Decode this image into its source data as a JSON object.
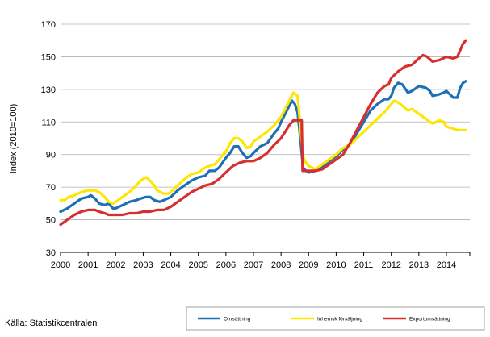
{
  "chart_data": {
    "type": "line",
    "ylabel": "Index (2010=100)",
    "ylim": [
      30,
      170
    ],
    "yticks": [
      30,
      50,
      70,
      90,
      110,
      130,
      150,
      170
    ],
    "xlim": [
      2000,
      2014.85
    ],
    "xticks": [
      2000,
      2001,
      2002,
      2003,
      2004,
      2005,
      2006,
      2007,
      2008,
      2009,
      2010,
      2011,
      2012,
      2013,
      2014
    ],
    "xtick_labels": [
      "2000",
      "2001",
      "2002",
      "2003",
      "2004",
      "2005",
      "2006",
      "2007",
      "2008",
      "2009",
      "2010",
      "2011",
      "2012",
      "2013",
      "2014"
    ],
    "grid": true,
    "legend_position": "bottom-right",
    "source": "Källa: Statistikcentralen",
    "series": [
      {
        "name": "Omsättning",
        "color": "#1f6fb5",
        "points": [
          [
            2000.0,
            55
          ],
          [
            2000.25,
            57
          ],
          [
            2000.5,
            60
          ],
          [
            2000.75,
            63
          ],
          [
            2001.0,
            64
          ],
          [
            2001.1,
            65
          ],
          [
            2001.25,
            63
          ],
          [
            2001.4,
            60
          ],
          [
            2001.6,
            59
          ],
          [
            2001.75,
            60
          ],
          [
            2001.9,
            57
          ],
          [
            2002.0,
            57
          ],
          [
            2002.25,
            59
          ],
          [
            2002.5,
            61
          ],
          [
            2002.75,
            62
          ],
          [
            2002.9,
            63
          ],
          [
            2003.1,
            64
          ],
          [
            2003.25,
            64
          ],
          [
            2003.4,
            62
          ],
          [
            2003.6,
            61
          ],
          [
            2003.75,
            62
          ],
          [
            2004.0,
            64
          ],
          [
            2004.25,
            68
          ],
          [
            2004.5,
            71
          ],
          [
            2004.75,
            74
          ],
          [
            2005.0,
            76
          ],
          [
            2005.25,
            77
          ],
          [
            2005.4,
            80
          ],
          [
            2005.6,
            80
          ],
          [
            2005.75,
            82
          ],
          [
            2006.0,
            88
          ],
          [
            2006.15,
            91
          ],
          [
            2006.3,
            95
          ],
          [
            2006.45,
            95
          ],
          [
            2006.6,
            91
          ],
          [
            2006.75,
            88
          ],
          [
            2006.9,
            89
          ],
          [
            2007.0,
            91
          ],
          [
            2007.25,
            95
          ],
          [
            2007.5,
            97
          ],
          [
            2007.75,
            103
          ],
          [
            2007.9,
            106
          ],
          [
            2008.0,
            110
          ],
          [
            2008.15,
            115
          ],
          [
            2008.3,
            120
          ],
          [
            2008.4,
            123
          ],
          [
            2008.5,
            121
          ],
          [
            2008.6,
            116
          ],
          [
            2008.7,
            100
          ],
          [
            2008.8,
            82
          ],
          [
            2008.9,
            80
          ],
          [
            2009.0,
            79
          ],
          [
            2009.25,
            80
          ],
          [
            2009.5,
            82
          ],
          [
            2009.75,
            86
          ],
          [
            2010.0,
            89
          ],
          [
            2010.25,
            93
          ],
          [
            2010.5,
            96
          ],
          [
            2010.75,
            103
          ],
          [
            2011.0,
            110
          ],
          [
            2011.25,
            117
          ],
          [
            2011.5,
            121
          ],
          [
            2011.75,
            124
          ],
          [
            2011.9,
            124
          ],
          [
            2012.0,
            126
          ],
          [
            2012.1,
            131
          ],
          [
            2012.25,
            134
          ],
          [
            2012.4,
            133
          ],
          [
            2012.6,
            128
          ],
          [
            2012.75,
            129
          ],
          [
            2013.0,
            132
          ],
          [
            2013.25,
            131
          ],
          [
            2013.4,
            129
          ],
          [
            2013.5,
            126
          ],
          [
            2013.75,
            127
          ],
          [
            2013.9,
            128
          ],
          [
            2014.0,
            129
          ],
          [
            2014.25,
            125
          ],
          [
            2014.4,
            125
          ],
          [
            2014.5,
            131
          ],
          [
            2014.6,
            134
          ],
          [
            2014.7,
            135
          ]
        ]
      },
      {
        "name": "Inhemsk försäljning",
        "color": "#ffe600",
        "points": [
          [
            2000.0,
            62
          ],
          [
            2000.15,
            62
          ],
          [
            2000.3,
            64
          ],
          [
            2000.5,
            65
          ],
          [
            2000.75,
            67
          ],
          [
            2001.0,
            68
          ],
          [
            2001.25,
            68
          ],
          [
            2001.4,
            67
          ],
          [
            2001.6,
            64
          ],
          [
            2001.75,
            61
          ],
          [
            2001.9,
            60
          ],
          [
            2002.0,
            61
          ],
          [
            2002.25,
            64
          ],
          [
            2002.5,
            67
          ],
          [
            2002.75,
            71
          ],
          [
            2002.9,
            74
          ],
          [
            2003.1,
            76
          ],
          [
            2003.25,
            74
          ],
          [
            2003.4,
            71
          ],
          [
            2003.5,
            68
          ],
          [
            2003.75,
            66
          ],
          [
            2003.9,
            66
          ],
          [
            2004.0,
            67
          ],
          [
            2004.25,
            71
          ],
          [
            2004.5,
            75
          ],
          [
            2004.75,
            78
          ],
          [
            2005.0,
            79
          ],
          [
            2005.25,
            82
          ],
          [
            2005.4,
            83
          ],
          [
            2005.6,
            84
          ],
          [
            2005.75,
            87
          ],
          [
            2006.0,
            92
          ],
          [
            2006.15,
            97
          ],
          [
            2006.3,
            100
          ],
          [
            2006.45,
            100
          ],
          [
            2006.6,
            98
          ],
          [
            2006.75,
            94
          ],
          [
            2006.9,
            95
          ],
          [
            2007.0,
            98
          ],
          [
            2007.25,
            101
          ],
          [
            2007.5,
            104
          ],
          [
            2007.75,
            108
          ],
          [
            2007.9,
            111
          ],
          [
            2008.0,
            113
          ],
          [
            2008.15,
            118
          ],
          [
            2008.3,
            123
          ],
          [
            2008.45,
            128
          ],
          [
            2008.6,
            126
          ],
          [
            2008.7,
            108
          ],
          [
            2008.8,
            89
          ],
          [
            2008.9,
            85
          ],
          [
            2009.0,
            83
          ],
          [
            2009.25,
            81
          ],
          [
            2009.5,
            84
          ],
          [
            2009.75,
            87
          ],
          [
            2010.0,
            90
          ],
          [
            2010.25,
            94
          ],
          [
            2010.5,
            96
          ],
          [
            2010.75,
            100
          ],
          [
            2011.0,
            104
          ],
          [
            2011.25,
            108
          ],
          [
            2011.5,
            112
          ],
          [
            2011.75,
            116
          ],
          [
            2011.9,
            119
          ],
          [
            2012.0,
            121
          ],
          [
            2012.1,
            123
          ],
          [
            2012.25,
            122
          ],
          [
            2012.4,
            120
          ],
          [
            2012.6,
            117
          ],
          [
            2012.75,
            118
          ],
          [
            2013.0,
            115
          ],
          [
            2013.25,
            112
          ],
          [
            2013.4,
            110
          ],
          [
            2013.5,
            109
          ],
          [
            2013.75,
            111
          ],
          [
            2013.9,
            110
          ],
          [
            2014.0,
            107
          ],
          [
            2014.25,
            106
          ],
          [
            2014.4,
            105
          ],
          [
            2014.5,
            105
          ],
          [
            2014.6,
            105
          ],
          [
            2014.7,
            105
          ]
        ]
      },
      {
        "name": "Exportomsättning",
        "color": "#d62f2f",
        "points": [
          [
            2000.0,
            47
          ],
          [
            2000.25,
            50
          ],
          [
            2000.5,
            53
          ],
          [
            2000.75,
            55
          ],
          [
            2001.0,
            56
          ],
          [
            2001.25,
            56
          ],
          [
            2001.4,
            55
          ],
          [
            2001.6,
            54
          ],
          [
            2001.75,
            53
          ],
          [
            2001.9,
            53
          ],
          [
            2002.0,
            53
          ],
          [
            2002.25,
            53
          ],
          [
            2002.5,
            54
          ],
          [
            2002.75,
            54
          ],
          [
            2003.0,
            55
          ],
          [
            2003.25,
            55
          ],
          [
            2003.5,
            56
          ],
          [
            2003.75,
            56
          ],
          [
            2004.0,
            58
          ],
          [
            2004.25,
            61
          ],
          [
            2004.5,
            64
          ],
          [
            2004.75,
            67
          ],
          [
            2005.0,
            69
          ],
          [
            2005.25,
            71
          ],
          [
            2005.5,
            72
          ],
          [
            2005.75,
            75
          ],
          [
            2006.0,
            79
          ],
          [
            2006.25,
            83
          ],
          [
            2006.5,
            85
          ],
          [
            2006.75,
            86
          ],
          [
            2007.0,
            86
          ],
          [
            2007.25,
            88
          ],
          [
            2007.5,
            91
          ],
          [
            2007.75,
            96
          ],
          [
            2008.0,
            100
          ],
          [
            2008.15,
            104
          ],
          [
            2008.3,
            108
          ],
          [
            2008.45,
            111
          ],
          [
            2008.6,
            111
          ],
          [
            2008.75,
            111
          ],
          [
            2008.78,
            80
          ],
          [
            2009.0,
            80
          ],
          [
            2009.25,
            80
          ],
          [
            2009.5,
            81
          ],
          [
            2009.75,
            84
          ],
          [
            2010.0,
            87
          ],
          [
            2010.25,
            90
          ],
          [
            2010.5,
            97
          ],
          [
            2010.75,
            105
          ],
          [
            2011.0,
            113
          ],
          [
            2011.25,
            121
          ],
          [
            2011.5,
            128
          ],
          [
            2011.75,
            132
          ],
          [
            2011.9,
            133
          ],
          [
            2012.0,
            137
          ],
          [
            2012.25,
            141
          ],
          [
            2012.5,
            144
          ],
          [
            2012.75,
            145
          ],
          [
            2013.0,
            149
          ],
          [
            2013.15,
            151
          ],
          [
            2013.3,
            150
          ],
          [
            2013.5,
            147
          ],
          [
            2013.75,
            148
          ],
          [
            2014.0,
            150
          ],
          [
            2014.25,
            149
          ],
          [
            2014.4,
            150
          ],
          [
            2014.5,
            154
          ],
          [
            2014.6,
            158
          ],
          [
            2014.7,
            160
          ]
        ]
      }
    ]
  }
}
